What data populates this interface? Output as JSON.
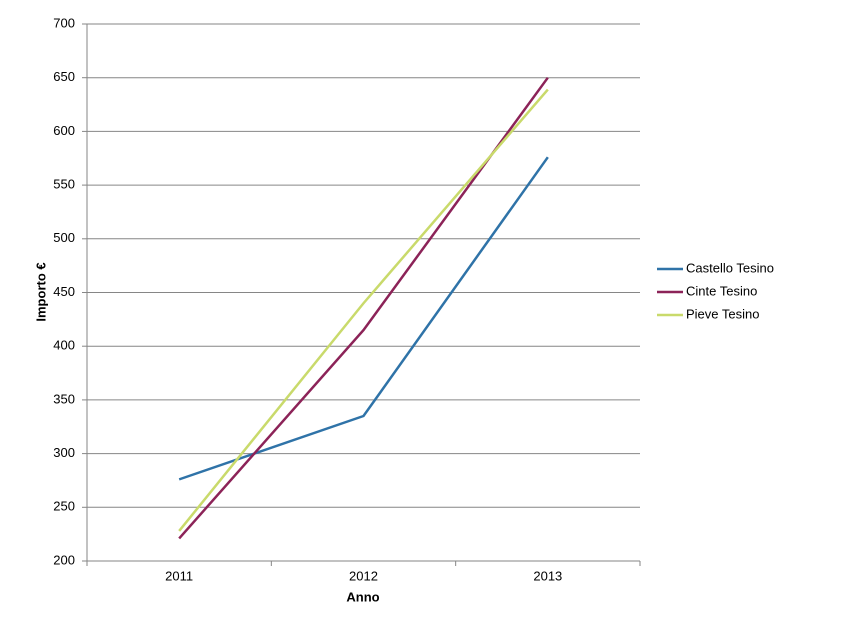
{
  "chart_data": {
    "type": "line",
    "x_label": "Anno",
    "y_label": "Importo €",
    "categories": [
      "2011",
      "2012",
      "2013"
    ],
    "series": [
      {
        "name": "Castello Tesino",
        "color": "#2f73a8",
        "values": [
          276,
          335,
          576
        ]
      },
      {
        "name": "Cinte Tesino",
        "color": "#8c2358",
        "values": [
          221,
          415,
          650
        ]
      },
      {
        "name": "Pieve Tesino",
        "color": "#c9da6b",
        "values": [
          228,
          440,
          639
        ]
      }
    ],
    "ylim": [
      200,
      700
    ],
    "yticks": [
      200,
      250,
      300,
      350,
      400,
      450,
      500,
      550,
      600,
      650,
      700
    ],
    "grid": true,
    "legend": "right"
  }
}
